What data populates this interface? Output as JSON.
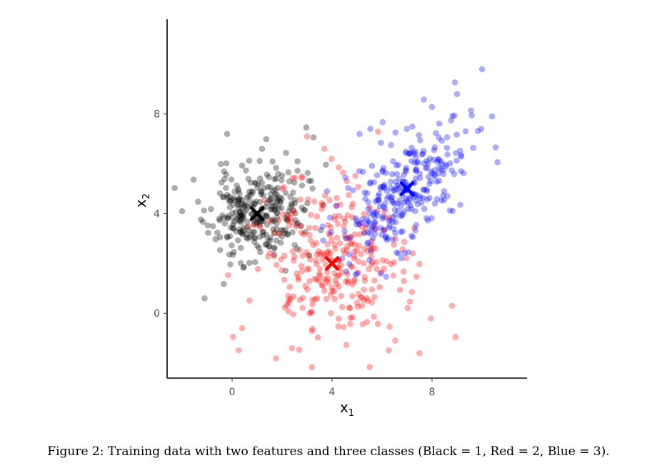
{
  "caption": "Figure 2: Training data with two features and three classes (Black = 1, Red = 2, Blue = 3).",
  "chart_data": {
    "type": "scatter",
    "xlabel": "x",
    "xlabel_sub": "1",
    "ylabel": "x",
    "ylabel_sub": "2",
    "xlim": [
      -2.6,
      11.8
    ],
    "ylim": [
      -2.6,
      11.8
    ],
    "x_ticks": [
      0,
      4,
      8
    ],
    "y_ticks": [
      0,
      4,
      8
    ],
    "grid": false,
    "colors": {
      "Black": "#000000",
      "Red": "#ff0000",
      "Blue": "#0000ff"
    },
    "series": [
      {
        "class": "Black",
        "value": 1,
        "n": 300,
        "center": [
          1,
          4
        ],
        "sd": [
          0.95,
          0.95
        ],
        "corr": 0.1,
        "seed": 11,
        "fixed_points": [
          [
            -1.1,
            0.6
          ],
          [
            -0.2,
            7.2
          ],
          [
            -2.0,
            4.1
          ],
          [
            1.2,
            6.6
          ]
        ]
      },
      {
        "class": "Red",
        "value": 2,
        "n": 300,
        "center": [
          4,
          2
        ],
        "sd": [
          1.45,
          1.65
        ],
        "corr": -0.05,
        "seed": 23,
        "fixed_points": [
          [
            3.0,
            7.1
          ],
          [
            0.4,
            -0.6
          ],
          [
            2.4,
            -1.4
          ],
          [
            7.5,
            -1.6
          ],
          [
            8.8,
            0.3
          ],
          [
            3.7,
            6.6
          ]
        ]
      },
      {
        "class": "Blue",
        "value": 3,
        "n": 300,
        "center": [
          7,
          5
        ],
        "sd": [
          1.25,
          1.35
        ],
        "corr": 0.6,
        "seed": 37,
        "fixed_points": [
          [
            10.0,
            9.8
          ],
          [
            10.4,
            7.9
          ],
          [
            9.0,
            8.8
          ],
          [
            5.1,
            7.2
          ],
          [
            3.8,
            4.9
          ]
        ]
      }
    ],
    "centroids": [
      {
        "class": "Black",
        "x": 1,
        "y": 4,
        "color": "#000000"
      },
      {
        "class": "Red",
        "x": 4,
        "y": 2,
        "color": "#ff0000"
      },
      {
        "class": "Blue",
        "x": 7,
        "y": 5,
        "color": "#0000ff"
      }
    ]
  }
}
